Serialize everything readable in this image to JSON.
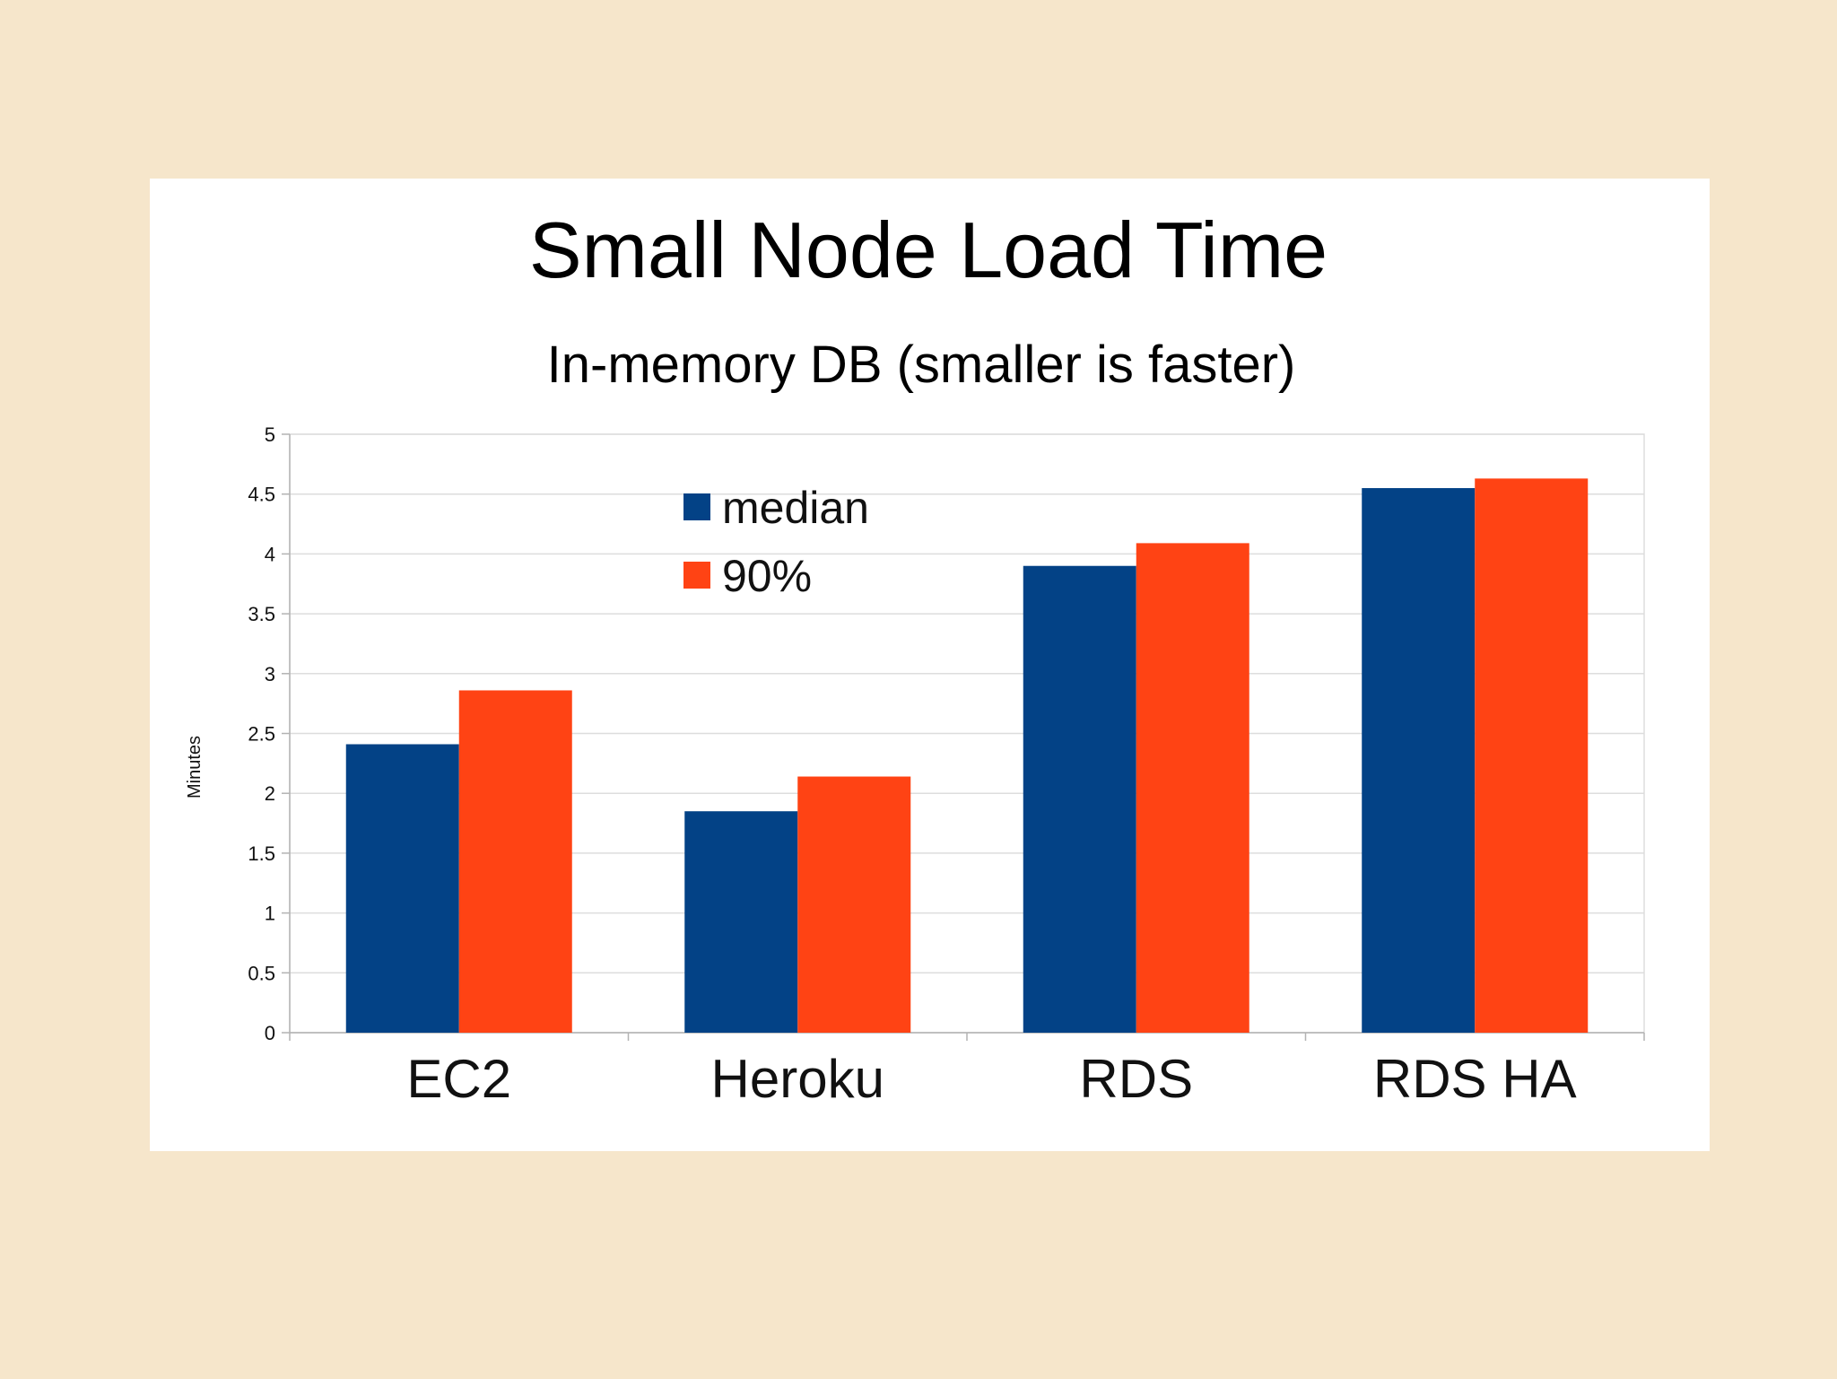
{
  "chart_data": {
    "type": "bar",
    "title": "Small Node Load Time",
    "subtitle": "In-memory DB (smaller is faster)",
    "xlabel": "",
    "ylabel": "Minutes",
    "categories": [
      "EC2",
      "Heroku",
      "RDS",
      "RDS HA"
    ],
    "series": [
      {
        "name": "median",
        "color": "#034286",
        "values": [
          2.41,
          1.85,
          3.9,
          4.55
        ]
      },
      {
        "name": "90%",
        "color": "#ff4314",
        "values": [
          2.86,
          2.14,
          4.09,
          4.63
        ]
      }
    ],
    "ylim": [
      0,
      5
    ],
    "yticks": [
      "0",
      "0.5",
      "1",
      "1.5",
      "2",
      "2.5",
      "3",
      "3.5",
      "4",
      "4.5",
      "5"
    ],
    "grid": true,
    "legend_position": "top-left"
  }
}
